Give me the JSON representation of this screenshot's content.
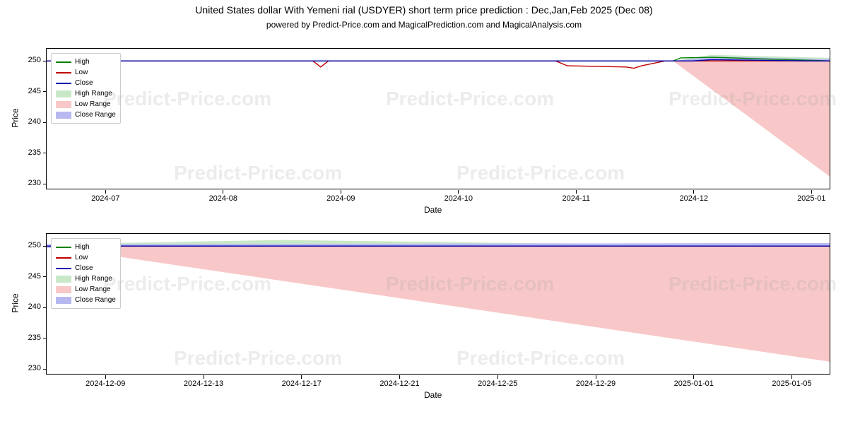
{
  "title": "United States dollar With Yemeni rial (USDYER) short term price prediction : Dec,Jan,Feb 2025 (Dec 08)",
  "subtitle": "powered by Predict-Price.com and MagicalPrediction.com and MagicalAnalysis.com",
  "watermark_text": "Predict-Price.com",
  "ylabel": "Price",
  "xlabel": "Date",
  "legend_items": [
    {
      "label": "High",
      "type": "line",
      "color": "#008000"
    },
    {
      "label": "Low",
      "type": "line",
      "color": "#c00000"
    },
    {
      "label": "Close",
      "type": "line",
      "color": "#0000b0"
    },
    {
      "label": "High Range",
      "type": "patch",
      "color": "#c8e8c8"
    },
    {
      "label": "Low Range",
      "type": "patch",
      "color": "#f8c8c8"
    },
    {
      "label": "Close Range",
      "type": "patch",
      "color": "#b8b8f0"
    }
  ],
  "chart_top": {
    "ylim": [
      229,
      252
    ],
    "yticks": [
      230,
      235,
      240,
      245,
      250
    ],
    "xticks": [
      "2024-07",
      "2024-08",
      "2024-09",
      "2024-10",
      "2024-11",
      "2024-12",
      "2025-01"
    ],
    "x_domain": [
      0,
      200
    ],
    "xtick_positions": [
      15,
      45,
      75,
      105,
      135,
      165,
      195
    ],
    "series": {
      "close": {
        "color": "#0000b0",
        "points": [
          [
            0,
            250
          ],
          [
            160,
            250
          ],
          [
            165,
            250
          ],
          [
            170,
            250.2
          ],
          [
            195,
            250
          ],
          [
            200,
            250
          ]
        ]
      },
      "low": {
        "color": "#c00000",
        "points": [
          [
            0,
            250
          ],
          [
            68,
            250
          ],
          [
            70,
            249
          ],
          [
            72,
            250
          ],
          [
            130,
            250
          ],
          [
            133,
            249.2
          ],
          [
            148,
            249
          ],
          [
            150,
            248.8
          ],
          [
            152,
            249.2
          ],
          [
            158,
            250
          ],
          [
            200,
            250
          ]
        ]
      },
      "high": {
        "color": "#008000",
        "points": [
          [
            0,
            250
          ],
          [
            160,
            250
          ],
          [
            162,
            250.5
          ],
          [
            170,
            250.6
          ],
          [
            200,
            250
          ]
        ]
      },
      "low_range_fill": {
        "color": "#f8c8c8",
        "points": [
          [
            160,
            250
          ],
          [
            200,
            231
          ],
          [
            200,
            250
          ]
        ]
      },
      "high_range_fill": {
        "color": "#c8e8c8",
        "points": [
          [
            160,
            250
          ],
          [
            170,
            251
          ],
          [
            200,
            250.5
          ],
          [
            200,
            250
          ]
        ]
      },
      "close_range_fill": {
        "color": "#b8b8f0",
        "points": [
          [
            160,
            250
          ],
          [
            170,
            250.7
          ],
          [
            200,
            250.3
          ],
          [
            200,
            249.5
          ],
          [
            170,
            249.3
          ]
        ]
      }
    }
  },
  "chart_bottom": {
    "ylim": [
      229,
      252
    ],
    "yticks": [
      230,
      235,
      240,
      245,
      250
    ],
    "xticks": [
      "2024-12-09",
      "2024-12-13",
      "2024-12-17",
      "2024-12-21",
      "2024-12-25",
      "2024-12-29",
      "2025-01-01",
      "2025-01-05"
    ],
    "x_domain": [
      0,
      200
    ],
    "xtick_positions": [
      15,
      40,
      65,
      90,
      115,
      140,
      165,
      190
    ],
    "series": {
      "close": {
        "color": "#0000b0",
        "points": [
          [
            0,
            250
          ],
          [
            200,
            250
          ]
        ]
      },
      "low": {
        "color": "#c00000",
        "points": [
          [
            0,
            250
          ],
          [
            200,
            250
          ]
        ]
      },
      "high": {
        "color": "#008000",
        "points": [
          [
            0,
            250
          ],
          [
            200,
            250
          ]
        ]
      },
      "low_range_fill": {
        "color": "#f8c8c8",
        "points": [
          [
            0,
            250
          ],
          [
            200,
            231
          ],
          [
            200,
            250
          ]
        ]
      },
      "high_range_fill": {
        "color": "#c8e8c8",
        "points": [
          [
            0,
            250.3
          ],
          [
            60,
            251
          ],
          [
            120,
            250.5
          ],
          [
            200,
            250.2
          ],
          [
            200,
            250
          ],
          [
            0,
            250
          ]
        ]
      },
      "close_range_fill": {
        "color": "#b8b8f0",
        "points": [
          [
            0,
            249.7
          ],
          [
            200,
            249.5
          ],
          [
            200,
            250.5
          ],
          [
            0,
            250.3
          ]
        ]
      }
    }
  },
  "colors": {
    "background": "#ffffff",
    "axis": "#000000",
    "watermark": "#999999"
  },
  "font_sizes": {
    "title": 14,
    "subtitle": 12,
    "axis_label": 12,
    "tick": 11,
    "legend": 10,
    "watermark": 28
  }
}
